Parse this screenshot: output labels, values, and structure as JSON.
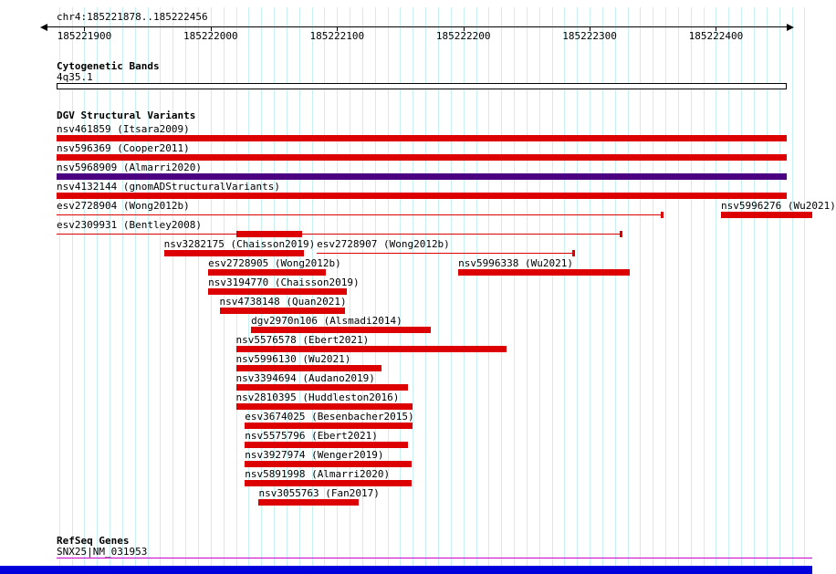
{
  "colors": {
    "feature_red": "#dd0000",
    "feature_purple": "#4b0082",
    "grid": "#c8f0f0",
    "refseq": "#cc00cc",
    "bottom_bar": "#0000dd"
  },
  "header": {
    "position": "chr4:185221878..185222456"
  },
  "sections": {
    "cytoband": {
      "title": "Cytogenetic Bands",
      "band_label": "4q35.1"
    },
    "dgv": {
      "title": "DGV Structural Variants"
    },
    "refseq": {
      "title": "RefSeq Genes",
      "gene_label": "SNX25|NM_031953"
    }
  },
  "chart_data": {
    "type": "genome_browser_tracks",
    "region": {
      "chrom": "chr4",
      "start": 185221878,
      "end": 185222456,
      "display": "chr4:185221878..185222456"
    },
    "axis": {
      "grid_step_bp": 10,
      "ticks": [
        {
          "value": 185221900,
          "label": "185221900"
        },
        {
          "value": 185222000,
          "label": "185222000"
        },
        {
          "value": 185222100,
          "label": "185222100"
        },
        {
          "value": 185222200,
          "label": "185222200"
        },
        {
          "value": 185222300,
          "label": "185222300"
        },
        {
          "value": 185222400,
          "label": "185222400"
        }
      ]
    },
    "cytoband": "4q35.1",
    "refseq_gene": "SNX25|NM_031953",
    "features": [
      {
        "row": 0,
        "label": "nsv461859 (Itsara2009)",
        "start": 185221878,
        "end": 185222456,
        "style": "box",
        "color": "red"
      },
      {
        "row": 1,
        "label": "nsv596369 (Cooper2011)",
        "start": 185221878,
        "end": 185222456,
        "style": "box",
        "color": "red"
      },
      {
        "row": 2,
        "label": "nsv5968909 (Almarri2020)",
        "start": 185221878,
        "end": 185222456,
        "style": "box",
        "color": "purple"
      },
      {
        "row": 3,
        "label": "nsv4132144 (gnomADStructuralVariants)",
        "start": 185221878,
        "end": 185222456,
        "style": "box",
        "color": "red"
      },
      {
        "row": 4,
        "label": "esv2728904 (Wong2012b)",
        "start": 185221878,
        "end": 185222358,
        "style": "line",
        "color": "red",
        "end_tick": true
      },
      {
        "row": 4,
        "label": "nsv5996276 (Wu2021)",
        "start": 185222404,
        "end": 185222480,
        "style": "box",
        "color": "red"
      },
      {
        "row": 5,
        "label": "esv2309931 (Bentley2008)",
        "start": 185221878,
        "end": 185222325,
        "style": "line",
        "color": "red",
        "end_tick": true,
        "thick_start": 185222020,
        "thick_end": 185222072
      },
      {
        "row": 6,
        "label": "nsv3282175 (Chaisson2019)",
        "start": 185221963,
        "end": 185222074,
        "style": "box",
        "color": "red"
      },
      {
        "row": 6,
        "label": "esv2728907 (Wong2012b)",
        "start": 185222084,
        "end": 185222288,
        "style": "line",
        "color": "red",
        "end_tick": true
      },
      {
        "row": 7,
        "label": "esv2728905 (Wong2012b)",
        "start": 185221998,
        "end": 185222091,
        "style": "box",
        "color": "red"
      },
      {
        "row": 7,
        "label": "nsv5996338 (Wu2021)",
        "start": 185222196,
        "end": 185222332,
        "style": "box",
        "color": "red"
      },
      {
        "row": 8,
        "label": "nsv3194770 (Chaisson2019)",
        "start": 185221998,
        "end": 185222108,
        "style": "box",
        "color": "red"
      },
      {
        "row": 9,
        "label": "nsv4738148 (Quan2021)",
        "start": 185222007,
        "end": 185222106,
        "style": "box",
        "color": "red"
      },
      {
        "row": 10,
        "label": "dgv2970n106 (Alsmadi2014)",
        "start": 185222032,
        "end": 185222174,
        "style": "box",
        "color": "red"
      },
      {
        "row": 11,
        "label": "nsv5576578 (Ebert2021)",
        "start": 185222020,
        "end": 185222234,
        "style": "box",
        "color": "red"
      },
      {
        "row": 12,
        "label": "nsv5996130 (Wu2021)",
        "start": 185222020,
        "end": 185222135,
        "style": "box",
        "color": "red"
      },
      {
        "row": 13,
        "label": "nsv3394694 (Audano2019)",
        "start": 185222020,
        "end": 185222156,
        "style": "box",
        "color": "red"
      },
      {
        "row": 14,
        "label": "nsv2810395 (Huddleston2016)",
        "start": 185222020,
        "end": 185222160,
        "style": "box",
        "color": "red"
      },
      {
        "row": 15,
        "label": "esv3674025 (Besenbacher2015)",
        "start": 185222027,
        "end": 185222160,
        "style": "box",
        "color": "red"
      },
      {
        "row": 16,
        "label": "nsv5575796 (Ebert2021)",
        "start": 185222027,
        "end": 185222156,
        "style": "box",
        "color": "red"
      },
      {
        "row": 17,
        "label": "nsv3927974 (Wenger2019)",
        "start": 185222027,
        "end": 185222159,
        "style": "box",
        "color": "red"
      },
      {
        "row": 18,
        "label": "nsv5891998 (Almarri2020)",
        "start": 185222027,
        "end": 185222159,
        "style": "box",
        "color": "red"
      },
      {
        "row": 19,
        "label": "nsv3055763 (Fan2017)",
        "start": 185222038,
        "end": 185222117,
        "style": "box",
        "color": "red"
      }
    ]
  }
}
